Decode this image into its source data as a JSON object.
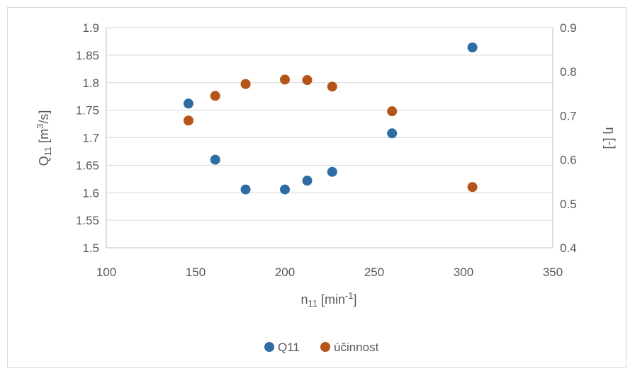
{
  "chart_data": {
    "type": "scatter",
    "title": "",
    "x": {
      "label_base": "n",
      "label_sub": "11",
      "label_pre_sup": " [min",
      "label_sup": "-1",
      "label_post_sup": "]",
      "range": [
        100,
        350
      ],
      "ticks": [
        100,
        150,
        200,
        250,
        300,
        350
      ]
    },
    "y_left": {
      "label_base": "Q",
      "label_sub": "11",
      "label_pre_sup": " [m",
      "label_sup": "3",
      "label_post_sup": "/s]",
      "range": [
        1.5,
        1.9
      ],
      "ticks": [
        "1.5",
        "1.55",
        "1.6",
        "1.65",
        "1.7",
        "1.75",
        "1.8",
        "1.85",
        "1.9"
      ]
    },
    "y_right": {
      "label": "η [-]",
      "range": [
        0.4,
        0.9
      ],
      "ticks": [
        "0.4",
        "0.5",
        "0.6",
        "0.7",
        "0.8",
        "0.9"
      ]
    },
    "grid": "horizontal",
    "legend_position": "bottom",
    "series": [
      {
        "name": "Q11",
        "axis": "left",
        "color": "#2e6da4",
        "points": [
          [
            146,
            1.762
          ],
          [
            161,
            1.66
          ],
          [
            178,
            1.606
          ],
          [
            200,
            1.606
          ],
          [
            212.5,
            1.622
          ],
          [
            226.5,
            1.638
          ],
          [
            260,
            1.708
          ],
          [
            305,
            1.864
          ]
        ]
      },
      {
        "name": "účinnost",
        "axis": "right",
        "color": "#b45418",
        "points": [
          [
            146,
            0.689
          ],
          [
            161,
            0.745
          ],
          [
            178,
            0.772
          ],
          [
            200,
            0.782
          ],
          [
            212.5,
            0.781
          ],
          [
            226.5,
            0.766
          ],
          [
            260,
            0.71
          ],
          [
            305,
            0.538
          ]
        ]
      }
    ]
  }
}
